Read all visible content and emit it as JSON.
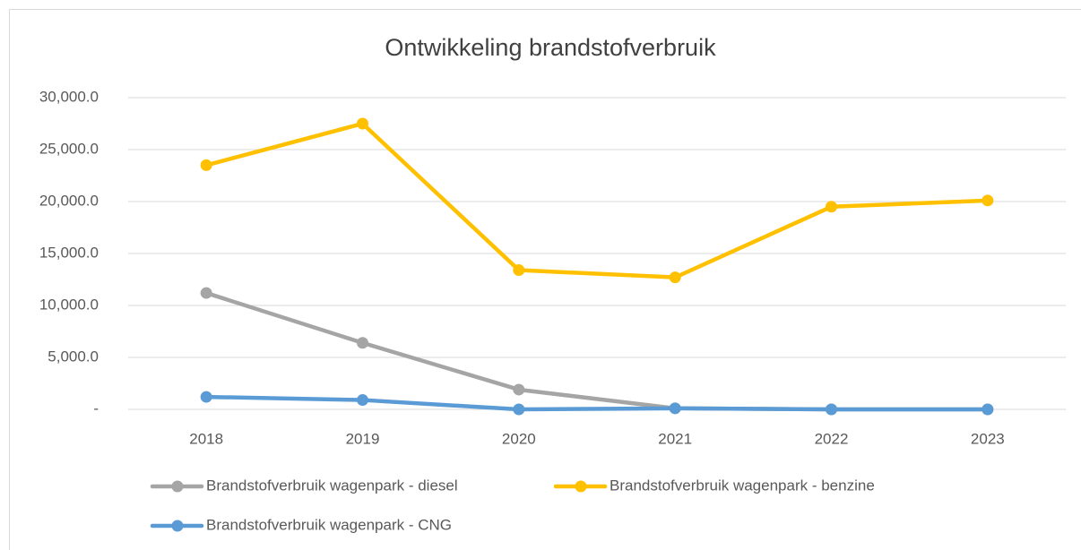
{
  "chart_data": {
    "type": "line",
    "title": "Ontwikkeling brandstofverbruik",
    "categories": [
      "2018",
      "2019",
      "2020",
      "2021",
      "2022",
      "2023"
    ],
    "series": [
      {
        "name": "Brandstofverbruik wagenpark - diesel",
        "color": "#a5a5a5",
        "values": [
          11200,
          6400,
          1900,
          100,
          0,
          0
        ]
      },
      {
        "name": "Brandstofverbruik wagenpark - benzine",
        "color": "#ffc000",
        "values": [
          23500,
          27500,
          13400,
          12700,
          19500,
          20100
        ]
      },
      {
        "name": "Brandstofverbruik wagenpark - CNG",
        "color": "#5b9bd5",
        "values": [
          1200,
          900,
          0,
          100,
          0,
          0
        ]
      }
    ],
    "ylim": [
      0,
      30000
    ],
    "yticks": [
      {
        "value": 0,
        "label": "-"
      },
      {
        "value": 5000,
        "label": "5,000.0"
      },
      {
        "value": 10000,
        "label": "10,000.0"
      },
      {
        "value": 15000,
        "label": "15,000.0"
      },
      {
        "value": 20000,
        "label": "20,000.0"
      },
      {
        "value": 25000,
        "label": "25,000.0"
      },
      {
        "value": 30000,
        "label": "30,000.0"
      }
    ],
    "grid": true,
    "legend": "bottom"
  }
}
